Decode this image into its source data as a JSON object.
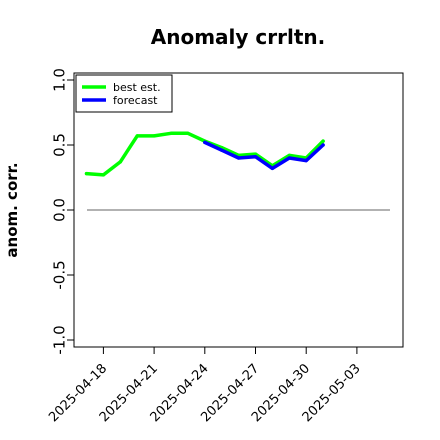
{
  "chart_data": {
    "type": "line",
    "title": "Anomaly crrltn.",
    "xlabel": "",
    "ylabel": "anom. corr.",
    "ylim": [
      -1.0,
      1.0
    ],
    "yticks": [
      "-1.0",
      "-0.5",
      "0.0",
      "0.5",
      "1.0"
    ],
    "xlim": [
      "2025-04-16",
      "2025-05-04"
    ],
    "xticks": [
      {
        "date": "2025-04-18",
        "label": "2025-04-18",
        "color": "#000000"
      },
      {
        "date": "2025-04-21",
        "label": "2025-04-21",
        "color": "#000000"
      },
      {
        "date": "2025-04-24",
        "label": "2025-04-24",
        "color": "#228b22"
      },
      {
        "date": "2025-04-27",
        "label": "2025-04-27",
        "color": "#000000"
      },
      {
        "date": "2025-04-30",
        "label": "2025-04-30",
        "color": "#000000"
      },
      {
        "date": "2025-05-03",
        "label": "2025-05-03",
        "color": "#000000"
      }
    ],
    "reference_line": 0.0,
    "grid": false,
    "legend_position": "top-left",
    "series": [
      {
        "name": "best est.",
        "color": "#00ff00",
        "points": [
          {
            "x": "2025-04-17",
            "y": 0.28
          },
          {
            "x": "2025-04-18",
            "y": 0.27
          },
          {
            "x": "2025-04-19",
            "y": 0.37
          },
          {
            "x": "2025-04-20",
            "y": 0.57
          },
          {
            "x": "2025-04-21",
            "y": 0.57
          },
          {
            "x": "2025-04-22",
            "y": 0.59
          },
          {
            "x": "2025-04-23",
            "y": 0.59
          },
          {
            "x": "2025-04-24",
            "y": 0.53
          },
          {
            "x": "2025-04-25",
            "y": 0.48
          },
          {
            "x": "2025-04-26",
            "y": 0.42
          },
          {
            "x": "2025-04-27",
            "y": 0.43
          },
          {
            "x": "2025-04-28",
            "y": 0.34
          },
          {
            "x": "2025-04-29",
            "y": 0.42
          },
          {
            "x": "2025-04-30",
            "y": 0.4
          },
          {
            "x": "2025-05-01",
            "y": 0.53
          }
        ]
      },
      {
        "name": "forecast",
        "color": "#0000ff",
        "points": [
          {
            "x": "2025-04-24",
            "y": 0.52
          },
          {
            "x": "2025-04-25",
            "y": 0.46
          },
          {
            "x": "2025-04-26",
            "y": 0.4
          },
          {
            "x": "2025-04-27",
            "y": 0.41
          },
          {
            "x": "2025-04-28",
            "y": 0.32
          },
          {
            "x": "2025-04-29",
            "y": 0.4
          },
          {
            "x": "2025-04-30",
            "y": 0.38
          },
          {
            "x": "2025-05-01",
            "y": 0.5
          }
        ]
      }
    ]
  }
}
